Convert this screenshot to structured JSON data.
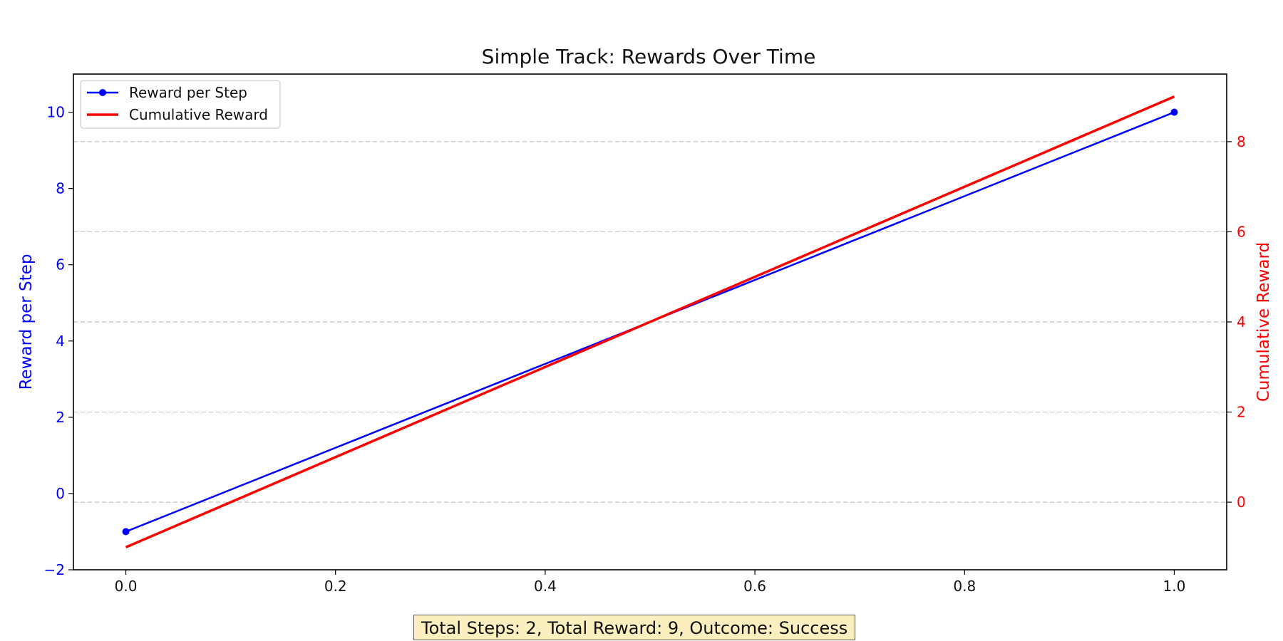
{
  "chart_data": {
    "type": "line",
    "title": "Simple Track: Rewards Over Time",
    "xlabel": "",
    "ylabel": "Reward per Step",
    "y2label": "Cumulative Reward",
    "x": [
      0.0,
      1.0
    ],
    "xlim": [
      -0.05,
      1.05
    ],
    "ylim": [
      -2,
      11
    ],
    "y2lim": [
      -1.5,
      9.5
    ],
    "xticks": [
      "0.0",
      "0.2",
      "0.4",
      "0.6",
      "0.8",
      "1.0"
    ],
    "yticks": [
      "−2",
      "0",
      "2",
      "4",
      "6",
      "8",
      "10"
    ],
    "y2ticks": [
      "0",
      "2",
      "4",
      "6",
      "8"
    ],
    "grid": "horizontal dashed, right axis",
    "legend_position": "upper-left",
    "series": [
      {
        "name": "Reward per Step",
        "axis": "left",
        "values": [
          -1,
          10
        ],
        "color": "#0000ff",
        "marker": "circle"
      },
      {
        "name": "Cumulative Reward",
        "axis": "right",
        "values": [
          -1,
          9
        ],
        "color": "#ff0000",
        "marker": "none"
      }
    ]
  },
  "summary": "Total Steps: 2, Total Reward: 9, Outcome: Success",
  "colors": {
    "left_axis": "#0000ff",
    "right_axis": "#ff0000",
    "grid": "#c0c0c0",
    "summary_bg": "#fbefc0"
  }
}
